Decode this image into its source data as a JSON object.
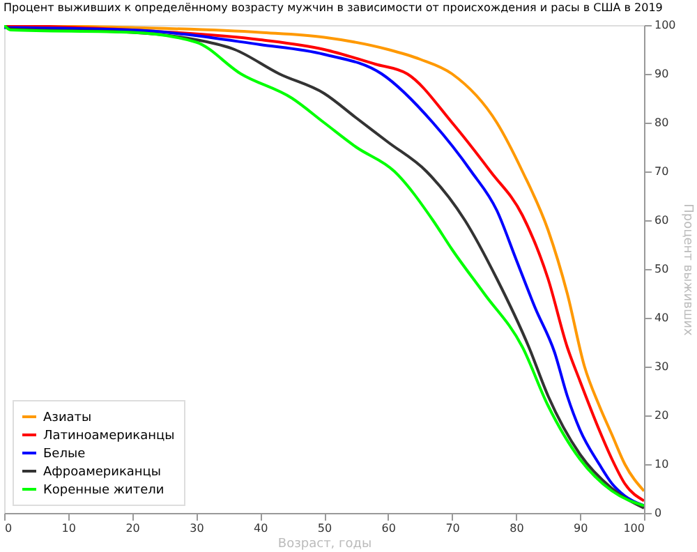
{
  "chart_data": {
    "type": "line",
    "title": "Процент выживших к определённому возрасту мужчин в зависимости от происхождения и расы в США в 2019",
    "xlabel": "Возраст, годы",
    "ylabel": "Процент выживших",
    "xlim": [
      0,
      100
    ],
    "ylim": [
      0,
      100
    ],
    "xticks": [
      0,
      10,
      20,
      30,
      40,
      50,
      60,
      70,
      80,
      90,
      100
    ],
    "yticks": [
      0,
      10,
      20,
      30,
      40,
      50,
      60,
      70,
      80,
      90,
      100
    ],
    "grid": false,
    "legend": "bottom left",
    "marker": "none",
    "line_style": "solid",
    "series": [
      {
        "name": "Азиаты",
        "color": "#ff9900",
        "x": [
          0,
          20,
          40,
          50,
          60,
          65,
          70,
          77,
          81,
          85,
          88,
          90.7,
          93,
          95,
          97,
          100
        ],
        "values": [
          100,
          99.5,
          98.5,
          97.5,
          95,
          93,
          90,
          80,
          70,
          58,
          45,
          30,
          22,
          16,
          10,
          4.5
        ]
      },
      {
        "name": "Латиноамериканцы",
        "color": "#ff0000",
        "x": [
          0,
          20,
          40,
          50,
          58,
          63,
          70,
          76,
          81,
          85,
          88,
          90,
          93,
          95,
          97,
          100
        ],
        "values": [
          100,
          99,
          97,
          95,
          92,
          90,
          80,
          70,
          61,
          48,
          34,
          27,
          17,
          11,
          6,
          2.5
        ]
      },
      {
        "name": "Белые",
        "color": "#0000ff",
        "x": [
          0,
          20,
          40,
          50,
          59,
          67,
          73,
          77,
          80,
          83,
          86,
          88,
          90,
          93,
          95,
          97,
          100
        ],
        "values": [
          99.5,
          99,
          96,
          94,
          90,
          80,
          70,
          62,
          52,
          42,
          33,
          24,
          17,
          10,
          6,
          3.5,
          1.5
        ]
      },
      {
        "name": "Афроамериканцы",
        "color": "#333333",
        "x": [
          0,
          1,
          20,
          30,
          36,
          43,
          50,
          55,
          60,
          66,
          72,
          77,
          82,
          85,
          90,
          95,
          100
        ],
        "values": [
          100,
          99.2,
          98.5,
          97,
          95,
          90,
          86,
          81,
          76,
          70,
          60,
          48,
          34,
          24,
          12,
          5,
          1
        ]
      },
      {
        "name": "Коренные жители",
        "color": "#00ff00",
        "x": [
          0,
          1,
          20,
          30,
          37,
          45,
          50,
          55,
          61,
          67,
          70,
          75,
          81,
          85,
          90,
          95,
          100
        ],
        "values": [
          100,
          99,
          98.5,
          96.5,
          90,
          85,
          80,
          75,
          70,
          60,
          54,
          45,
          34,
          22,
          11,
          4.5,
          1.5
        ]
      }
    ]
  }
}
